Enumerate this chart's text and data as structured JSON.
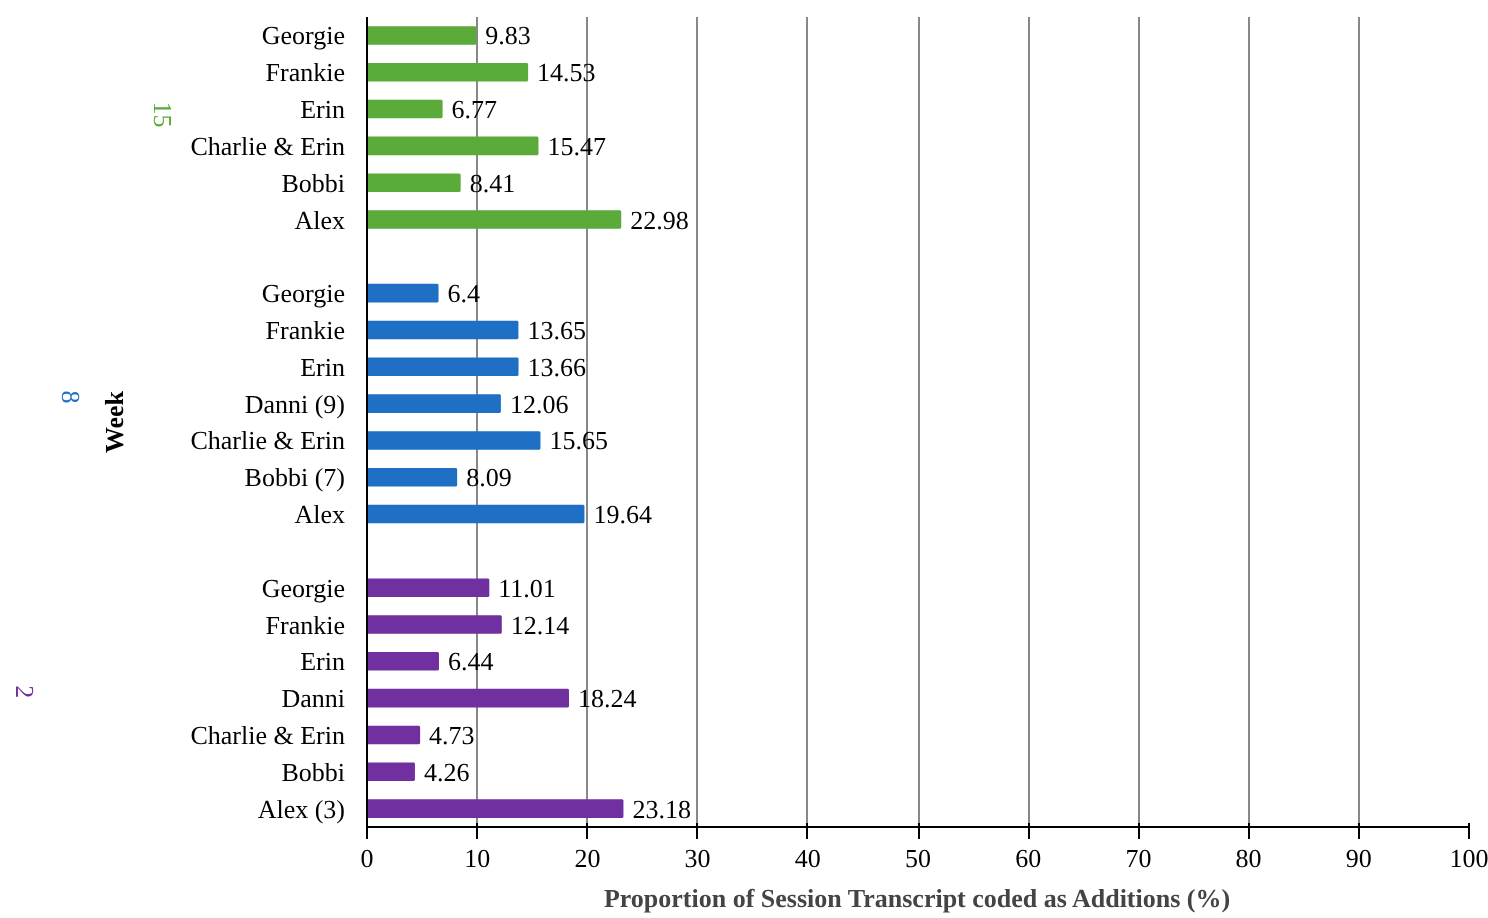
{
  "chart_data": {
    "type": "bar",
    "orientation": "horizontal",
    "xlabel": "Proportion of Session Transcript coded as Additions (%)",
    "ylabel": "Week",
    "categories": [
      "Georgie",
      "Frankie",
      "Erin",
      "Charlie & Erin",
      "Bobbi",
      "Alex",
      null,
      "Georgie",
      "Frankie",
      "Erin",
      "Danni (9)",
      "Charlie & Erin",
      "Bobbi (7)",
      "Alex",
      null,
      "Georgie",
      "Frankie",
      "Erin",
      "Danni",
      "Charlie & Erin",
      "Bobbi",
      "Alex (3)"
    ],
    "series": [
      {
        "name": "15",
        "color": "#5aab3a",
        "values": [
          9.83,
          14.53,
          6.77,
          15.47,
          8.41,
          22.98,
          null,
          null,
          null,
          null,
          null,
          null,
          null,
          null,
          null,
          null,
          null,
          null,
          null,
          null,
          null,
          null
        ]
      },
      {
        "name": "8",
        "color": "#1f6fc5",
        "values": [
          null,
          null,
          null,
          null,
          null,
          null,
          null,
          6.4,
          13.65,
          13.66,
          12.06,
          15.65,
          8.09,
          19.64,
          null,
          null,
          null,
          null,
          null,
          null,
          null,
          null
        ]
      },
      {
        "name": "2",
        "color": "#7030a0",
        "values": [
          null,
          null,
          null,
          null,
          null,
          null,
          null,
          null,
          null,
          null,
          null,
          null,
          null,
          null,
          null,
          11.01,
          12.14,
          6.44,
          18.24,
          4.73,
          4.26,
          23.18
        ]
      }
    ],
    "xlim": [
      0,
      100
    ],
    "xticks": [
      0,
      10,
      20,
      30,
      40,
      50,
      60,
      70,
      80,
      90,
      100
    ],
    "grid": "x",
    "data_labels": true
  }
}
